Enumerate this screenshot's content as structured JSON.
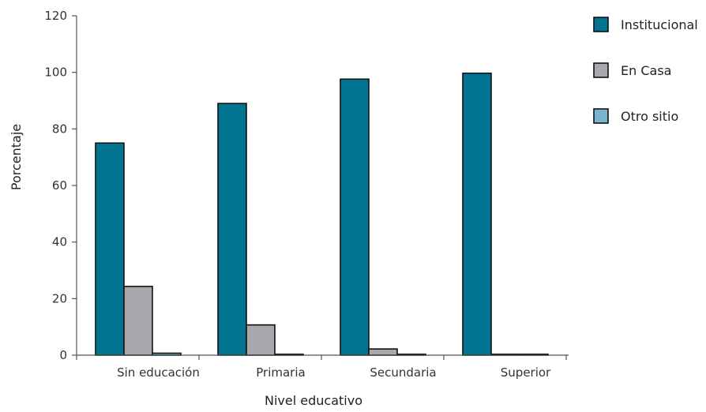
{
  "chart_data": {
    "type": "bar",
    "title": "",
    "xlabel": "Nivel educativo",
    "ylabel": "Porcentaje",
    "categories": [
      "Sin educación",
      "Primaria",
      "Secundaria",
      "Superior"
    ],
    "ylim": [
      0,
      120
    ],
    "yticks": [
      0,
      20,
      40,
      60,
      80,
      100,
      120
    ],
    "grid": false,
    "legend_position": "top-right",
    "series": [
      {
        "name": "Institucional",
        "color": "#007491",
        "values": [
          75,
          89,
          97.6,
          99.7
        ]
      },
      {
        "name": "En Casa",
        "color": "#a7a9ac",
        "values": [
          24.3,
          10.7,
          2.2,
          0.2
        ]
      },
      {
        "name": "Otro sitio",
        "color": "#79b4cc",
        "values": [
          0.7,
          0.3,
          0.2,
          0.1
        ]
      }
    ]
  }
}
